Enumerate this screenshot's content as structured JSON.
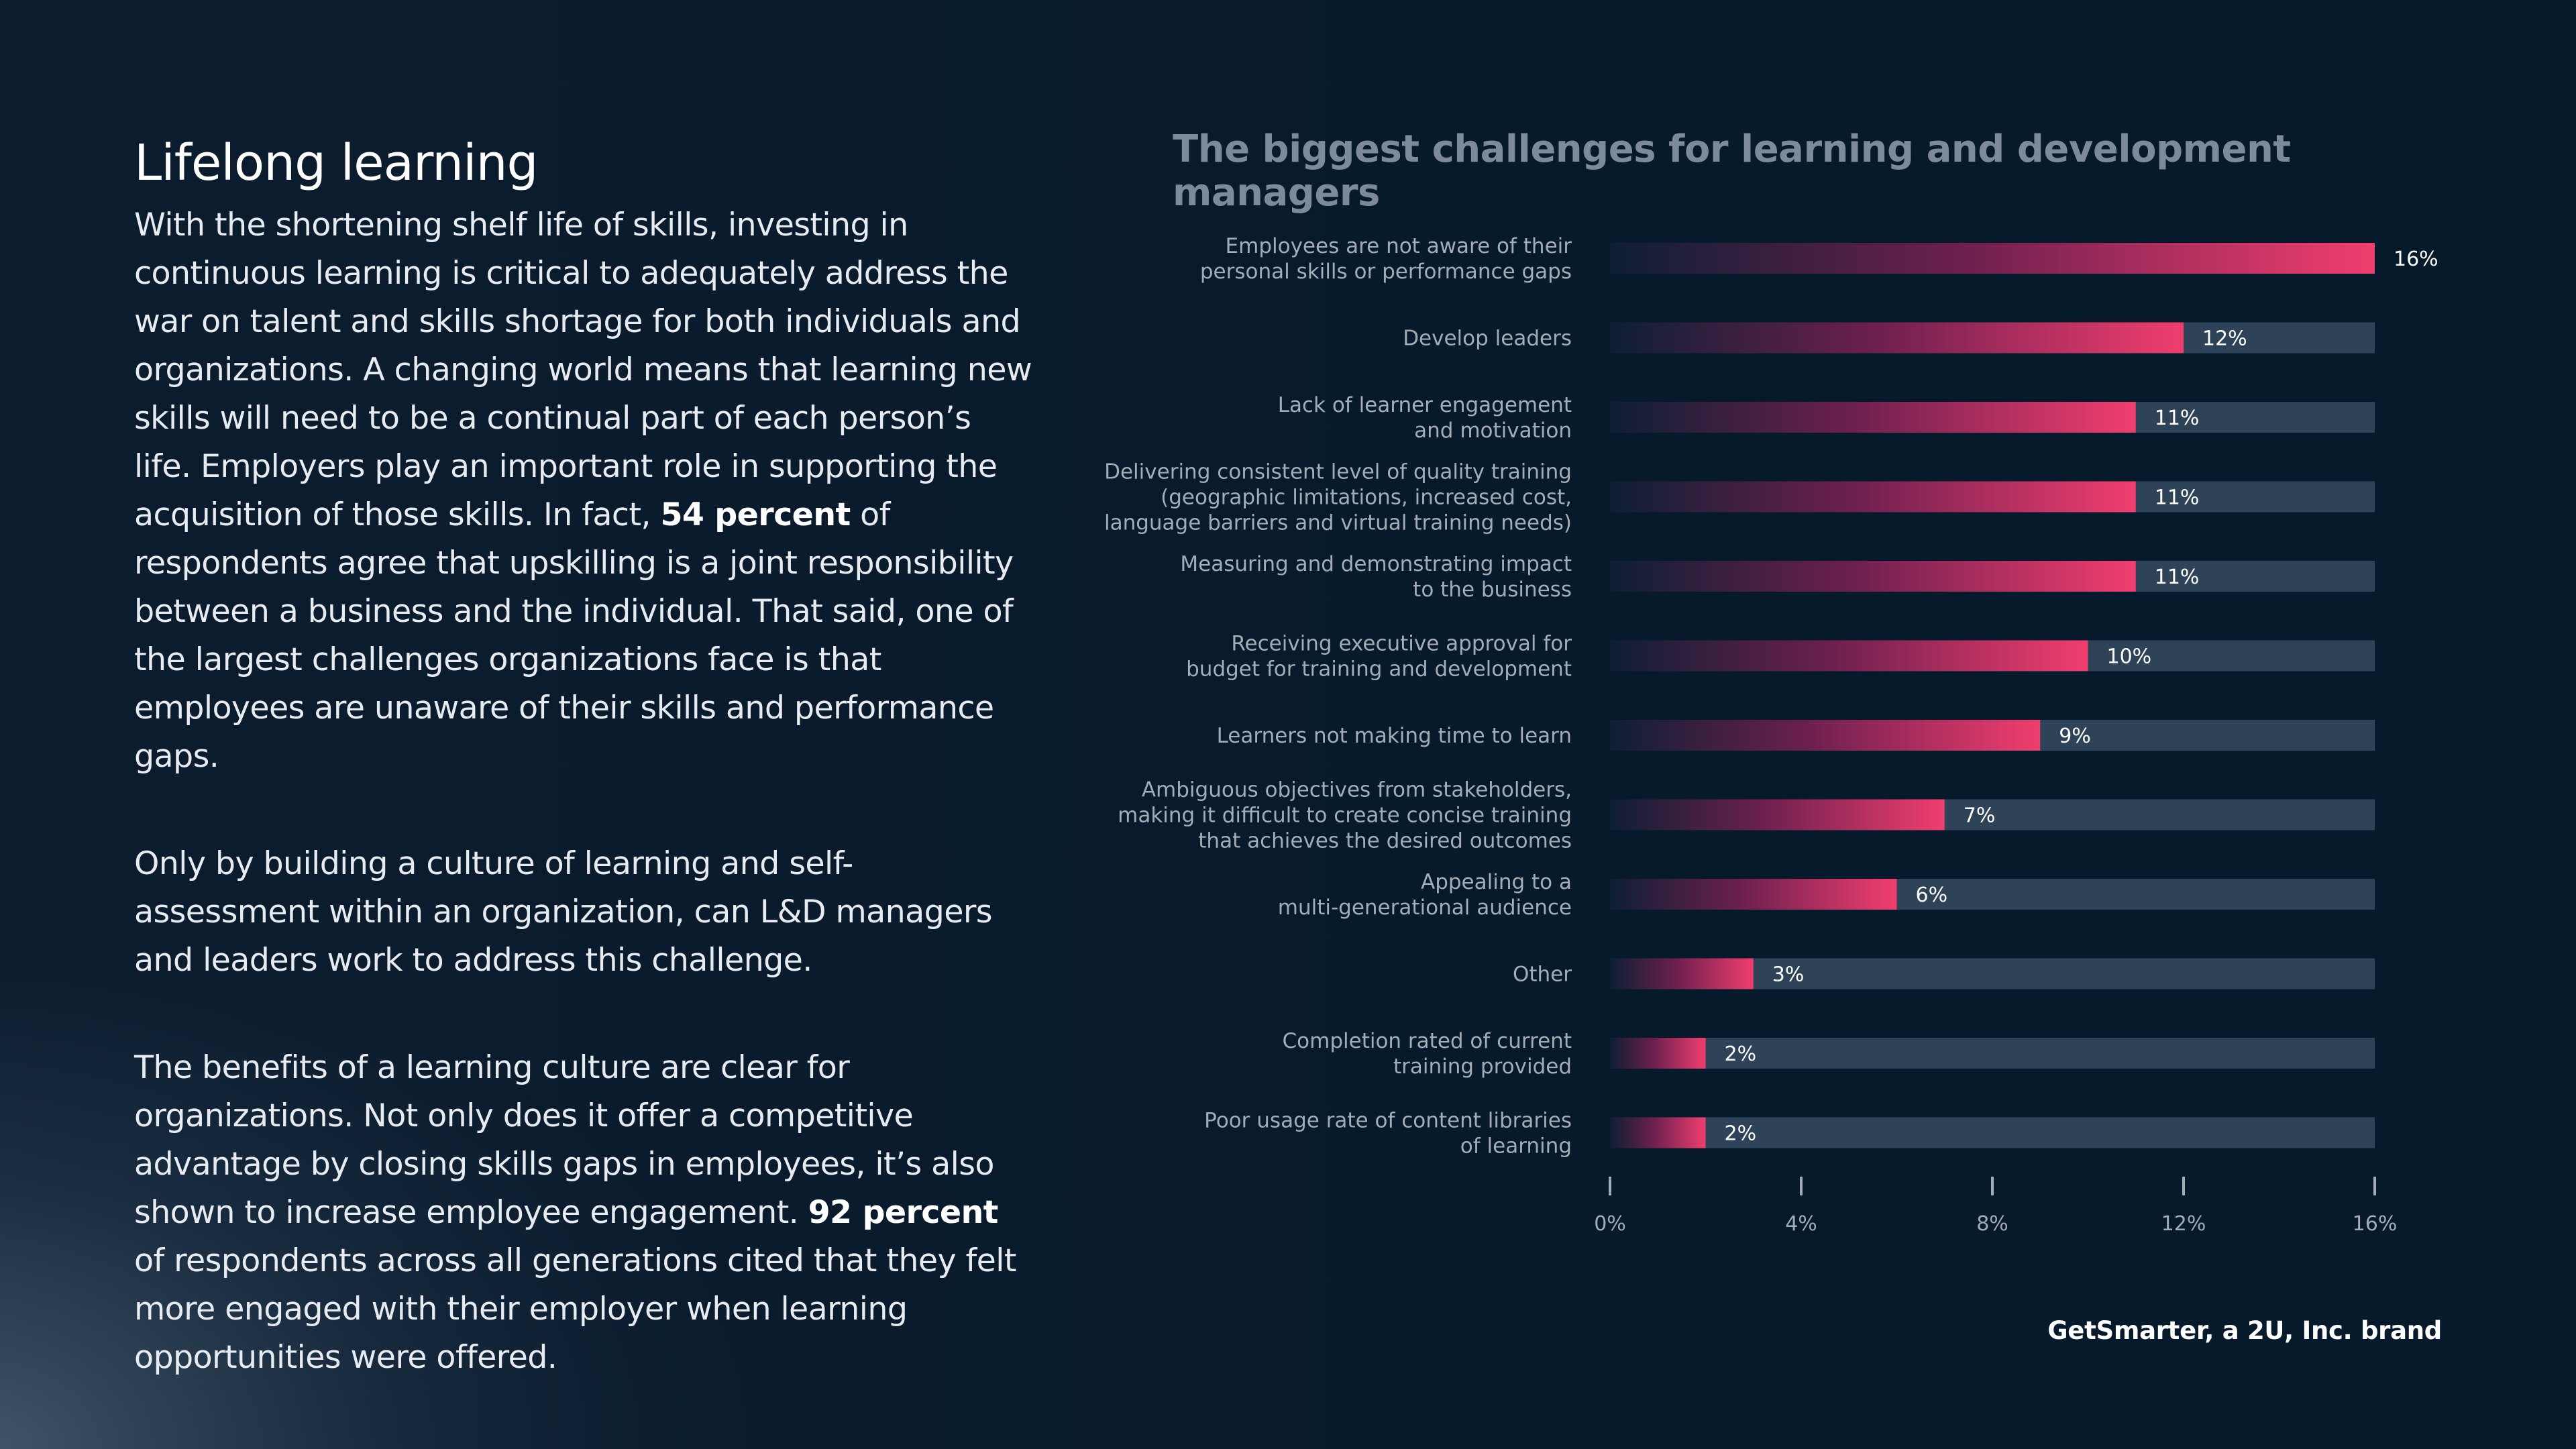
{
  "left": {
    "heading": "Lifelong learning",
    "p1_a": "With the shortening shelf life of skills, investing in continuous learning is critical to adequately address the war on talent and skills shortage for both individuals and organizations. A changing world means that learning new skills will need to be a continual part of each person’s life. Employers play an important role in supporting the acquisition of those skills. In fact,",
    "p1_bold": "54 percent",
    "p1_b": "of respondents agree that upskilling is a joint responsibility between a business and the individual. That said, one of the largest challenges organizations face is that employees are unaware of their skills and performance gaps.",
    "p2": "Only by building a culture of learning and self-assessment within an organization, can L&D managers and leaders work to address this challenge.",
    "p3_a": "The benefits of a learning culture are clear for organizations. Not only does it offer a competitive advantage by closing skills gaps in employees, it’s also shown to increase employee engagement.",
    "p3_bold": "92 percent",
    "p3_b": "of respondents across all generations cited that they felt more engaged with their employer when learning opportunities were offered."
  },
  "source": "GetSmarter, a 2U, Inc. brand",
  "colors": {
    "bar_start": "#0d1f33",
    "bar_mid": "#6a1f4f",
    "bar_end": "#f03e6e",
    "track": "#2e4358"
  },
  "chart_data": {
    "type": "bar",
    "orientation": "horizontal",
    "title": "The biggest challenges for learning and development managers",
    "categories": [
      [
        "Employees are not aware of their",
        "personal skills or performance gaps"
      ],
      [
        "Develop leaders"
      ],
      [
        "Lack of learner engagement",
        "and motivation"
      ],
      [
        "Delivering consistent level of quality  training",
        "(geographic limitations, increased cost,",
        "language barriers and virtual training needs)"
      ],
      [
        "Measuring and demonstrating impact",
        "to the business"
      ],
      [
        "Receiving executive approval for",
        "budget for training and development"
      ],
      [
        "Learners not making time to learn"
      ],
      [
        "Ambiguous objectives from stakeholders,",
        "making it difficult to create concise training",
        "that achieves the desired outcomes"
      ],
      [
        "Appealing to a",
        "multi-generational audience"
      ],
      [
        "Other"
      ],
      [
        "Completion rated of current",
        "training provided"
      ],
      [
        "Poor usage rate of content libraries",
        "of learning"
      ]
    ],
    "values": [
      16,
      12,
      11,
      11,
      11,
      10,
      9,
      7,
      6,
      3,
      2,
      2
    ],
    "value_labels": [
      "16%",
      "12%",
      "11%",
      "11%",
      "11%",
      "10%",
      "9%",
      "7%",
      "6%",
      "3%",
      "2%",
      "2%"
    ],
    "xlim": [
      0,
      16
    ],
    "ticks": [
      0,
      4,
      8,
      12,
      16
    ],
    "tick_labels": [
      "0%",
      "4%",
      "8%",
      "12%",
      "16%"
    ],
    "grid": false,
    "legend": "none"
  }
}
